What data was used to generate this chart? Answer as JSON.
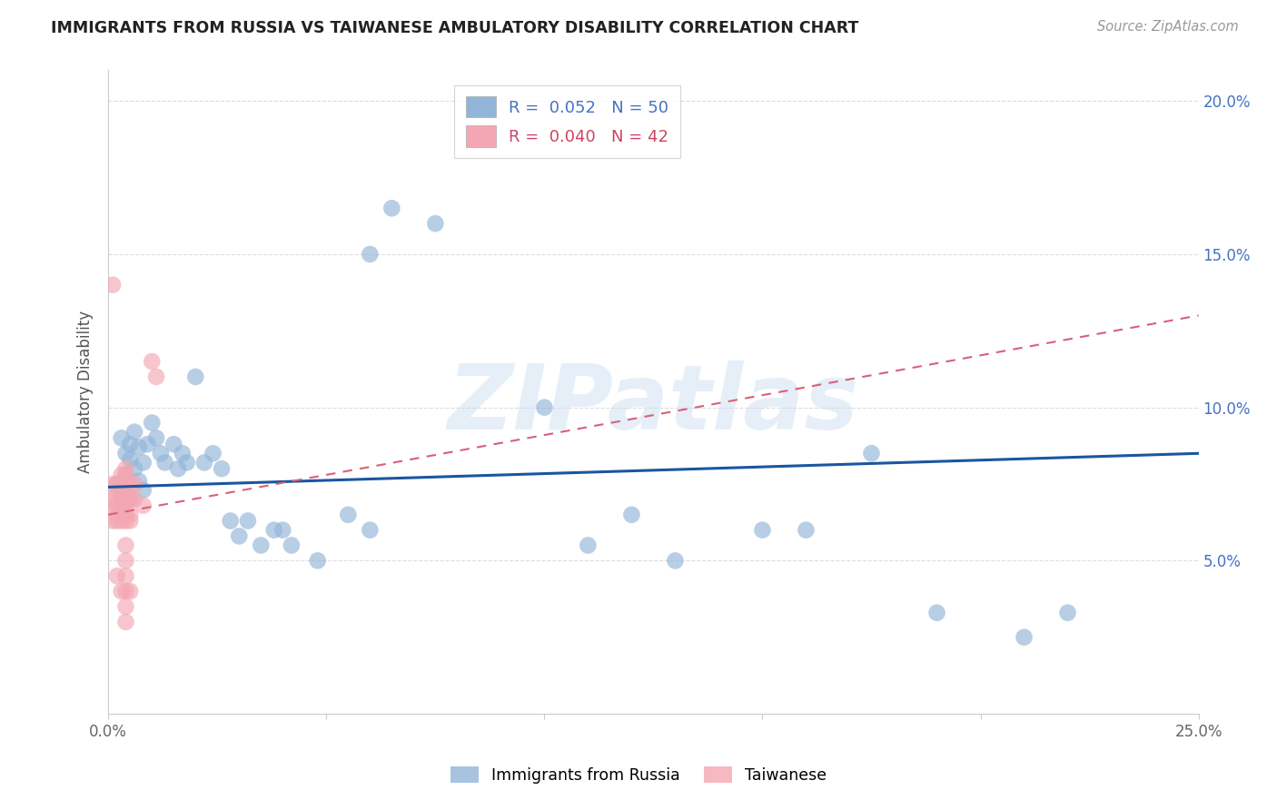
{
  "title": "IMMIGRANTS FROM RUSSIA VS TAIWANESE AMBULATORY DISABILITY CORRELATION CHART",
  "source": "Source: ZipAtlas.com",
  "ylabel": "Ambulatory Disability",
  "xlim": [
    0.0,
    0.25
  ],
  "ylim": [
    0.0,
    0.21
  ],
  "x_tick_pos": [
    0.0,
    0.05,
    0.1,
    0.15,
    0.2,
    0.25
  ],
  "x_tick_labels": [
    "0.0%",
    "",
    "",
    "",
    "",
    "25.0%"
  ],
  "y_tick_pos": [
    0.05,
    0.1,
    0.15,
    0.2
  ],
  "y_tick_labels": [
    "5.0%",
    "10.0%",
    "15.0%",
    "20.0%"
  ],
  "legend1_r": "R =  0.052",
  "legend1_n": "N = 50",
  "legend2_r": "R =  0.040",
  "legend2_n": "N = 42",
  "watermark": "ZIPatlas",
  "blue_color": "#92B4D8",
  "pink_color": "#F4A7B2",
  "blue_line_color": "#1A56A0",
  "pink_line_color": "#D9607A",
  "russia_x": [
    0.002,
    0.003,
    0.003,
    0.004,
    0.004,
    0.005,
    0.005,
    0.005,
    0.006,
    0.006,
    0.007,
    0.007,
    0.008,
    0.008,
    0.009,
    0.01,
    0.011,
    0.012,
    0.013,
    0.015,
    0.016,
    0.017,
    0.018,
    0.02,
    0.022,
    0.024,
    0.026,
    0.028,
    0.03,
    0.032,
    0.035,
    0.038,
    0.04,
    0.042,
    0.048,
    0.055,
    0.06,
    0.065,
    0.1,
    0.11,
    0.12,
    0.13,
    0.15,
    0.16,
    0.175,
    0.19,
    0.21,
    0.22,
    0.06,
    0.075
  ],
  "russia_y": [
    0.075,
    0.09,
    0.072,
    0.085,
    0.078,
    0.088,
    0.083,
    0.07,
    0.092,
    0.08,
    0.087,
    0.076,
    0.082,
    0.073,
    0.088,
    0.095,
    0.09,
    0.085,
    0.082,
    0.088,
    0.08,
    0.085,
    0.082,
    0.11,
    0.082,
    0.085,
    0.08,
    0.063,
    0.058,
    0.063,
    0.055,
    0.06,
    0.06,
    0.055,
    0.05,
    0.065,
    0.06,
    0.165,
    0.1,
    0.055,
    0.065,
    0.05,
    0.06,
    0.06,
    0.085,
    0.033,
    0.025,
    0.033,
    0.15,
    0.16
  ],
  "taiwanese_x": [
    0.001,
    0.001,
    0.001,
    0.001,
    0.001,
    0.002,
    0.002,
    0.002,
    0.002,
    0.002,
    0.002,
    0.003,
    0.003,
    0.003,
    0.003,
    0.003,
    0.003,
    0.003,
    0.004,
    0.004,
    0.004,
    0.004,
    0.004,
    0.004,
    0.004,
    0.004,
    0.004,
    0.004,
    0.004,
    0.004,
    0.004,
    0.004,
    0.005,
    0.005,
    0.005,
    0.005,
    0.005,
    0.006,
    0.006,
    0.008,
    0.01,
    0.011
  ],
  "taiwanese_y": [
    0.14,
    0.075,
    0.07,
    0.068,
    0.063,
    0.075,
    0.072,
    0.068,
    0.065,
    0.063,
    0.045,
    0.078,
    0.075,
    0.073,
    0.07,
    0.068,
    0.063,
    0.04,
    0.08,
    0.078,
    0.075,
    0.073,
    0.07,
    0.068,
    0.065,
    0.063,
    0.055,
    0.05,
    0.045,
    0.04,
    0.035,
    0.03,
    0.075,
    0.07,
    0.065,
    0.063,
    0.04,
    0.075,
    0.07,
    0.068,
    0.115,
    0.11
  ]
}
